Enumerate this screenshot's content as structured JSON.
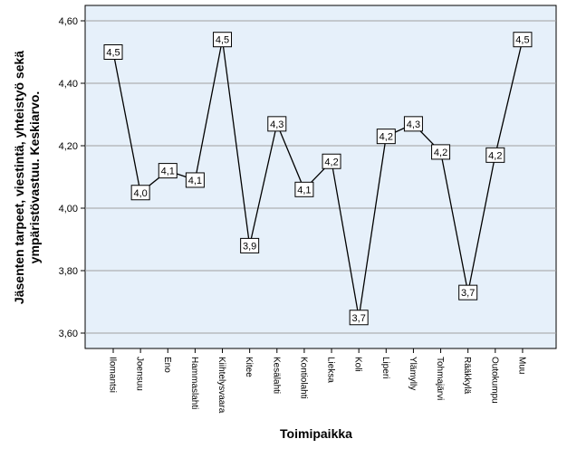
{
  "chart_data": {
    "type": "line",
    "title": "",
    "xlabel": "Toimipaikka",
    "ylabel_lines": [
      "Jäsenten tarpeet, viestintä, yhteistyö sekä",
      "ympäristövastuu. Keskiarvo."
    ],
    "categories": [
      "Ilomantsi",
      "Joensuu",
      "Eno",
      "Hammaslahti",
      "Kiihtelysvaara",
      "Kitee",
      "Kesälahti",
      "Kontiolahti",
      "Lieksa",
      "Koli",
      "Liperi",
      "Ylämylly",
      "Tohmajärvi",
      "Rääkkylä",
      "Outokumpu",
      "Muu"
    ],
    "series": [
      {
        "values": [
          4.5,
          4.05,
          4.12,
          4.09,
          4.54,
          3.88,
          4.27,
          4.06,
          4.15,
          3.65,
          4.23,
          4.27,
          4.18,
          3.73,
          4.17,
          4.54
        ],
        "labels": [
          "4,5",
          "4,0",
          "4,1",
          "4,1",
          "4,5",
          "3,9",
          "4,3",
          "4,1",
          "4,2",
          "3,7",
          "4,2",
          "4,3",
          "4,2",
          "3,7",
          "4,2",
          "4,5"
        ]
      }
    ],
    "ylim": [
      3.55,
      4.62
    ],
    "yticks": [
      3.6,
      3.8,
      4.0,
      4.2,
      4.4,
      4.6
    ],
    "ytick_labels": [
      "3,60",
      "3,80",
      "4,00",
      "4,20",
      "4,40",
      "4,60"
    ],
    "grid": true,
    "legend": "none",
    "colors": {
      "plot_background": "#e6f0fa",
      "line": "#000000",
      "grid": "#a0a0a0"
    }
  }
}
